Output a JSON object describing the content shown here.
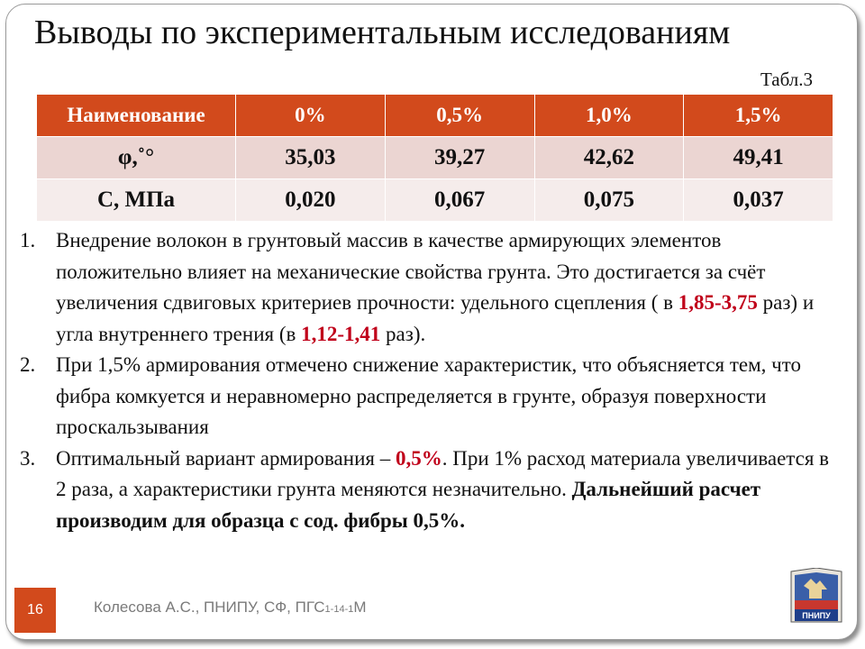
{
  "slide": {
    "title": "Выводы по экспериментальным исследованиям",
    "table_label": "Табл.3",
    "number": "16"
  },
  "table": {
    "headers": [
      "Наименование",
      "0%",
      "0,5%",
      "1,0%",
      "1,5%"
    ],
    "rows": [
      {
        "name": "φ,˚°",
        "values": [
          "35,03",
          "39,27",
          "42,62",
          "49,41"
        ]
      },
      {
        "name": "С, МПа",
        "values": [
          "0,020",
          "0,067",
          "0,075",
          "0,037"
        ]
      }
    ]
  },
  "conclusions": [
    {
      "num": "1.",
      "p1": "Внедрение волокон в грунтовый массив в качестве армирующих элементов положительно влияет на механические свойства грунта. Это достигается за счёт увеличения сдвиговых критериев прочности: удельного сцепления ( в ",
      "h1": "1,85-3,75",
      "p2": " раз) и угла внутреннего трения (в ",
      "h2": "1,12-1,41",
      "p3": " раз)."
    },
    {
      "num": "2.",
      "text": "При 1,5% армирования отмечено снижение характеристик, что объясняется  тем, что фибра комкуется и неравномерно распределяется в грунте, образуя поверхности проскальзывания"
    },
    {
      "num": "3.",
      "p1": "Оптимальный вариант армирования – ",
      "h1": "0,5%",
      "p2": ". При 1% расход материала увеличивается в 2 раза, а характеристики грунта меняются незначительно. ",
      "bold": "Дальнейший расчет производим для образца с сод. фибры 0,5%."
    }
  ],
  "footer": {
    "author": "Колесова А.С., ПНИПУ, СФ, ПГС",
    "group_sub": "1-14-1",
    "group_suffix": "М"
  },
  "logo": {
    "text": "ПНИПУ",
    "icon": "university-crest-icon"
  },
  "colors": {
    "accent": "#d24a1c",
    "highlight": "#c0001a",
    "row_dark": "#ebd5d2",
    "row_light": "#f5eceb"
  }
}
